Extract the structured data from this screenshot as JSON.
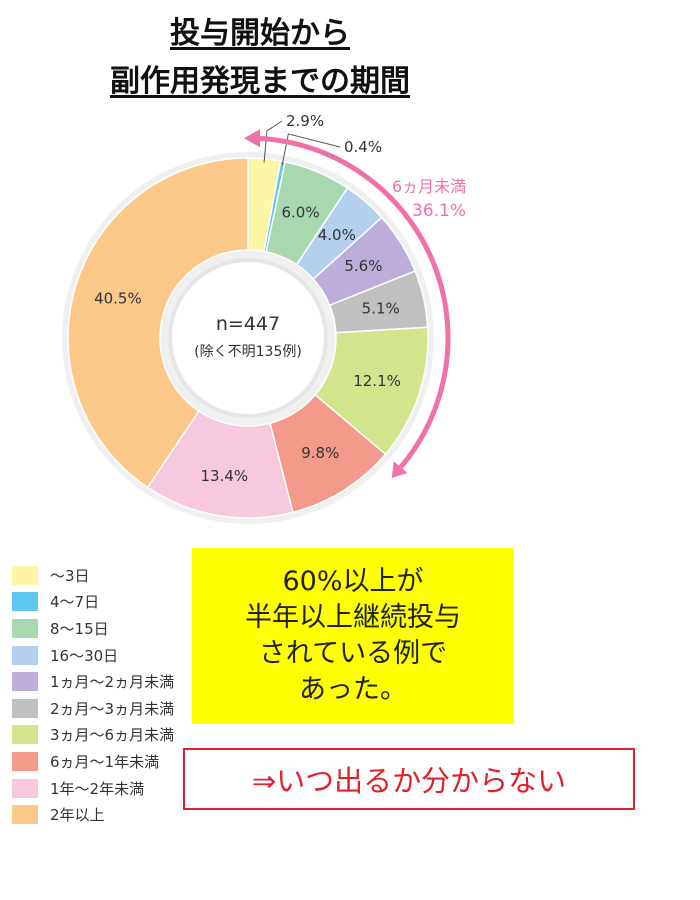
{
  "title_line1": "投与開始から",
  "title_line2": "副作用発現までの期間",
  "center_label": {
    "n": "n=447",
    "note": "(除く不明135例)"
  },
  "bracket": {
    "label": "6ヵ月未満",
    "value": "36.1%",
    "color": "#f070a8"
  },
  "chart_data": {
    "type": "pie",
    "donut": true,
    "slices": [
      {
        "label": "〜3日",
        "value": 2.9,
        "display": "2.9%",
        "color": "#fdf5a8"
      },
      {
        "label": "4〜7日",
        "value": 0.4,
        "display": "0.4%",
        "color": "#5fc8ee"
      },
      {
        "label": "8〜15日",
        "value": 6.0,
        "display": "6.0%",
        "color": "#a8d8b0"
      },
      {
        "label": "16〜30日",
        "value": 4.0,
        "display": "4.0%",
        "color": "#b4d0ee"
      },
      {
        "label": "1ヵ月〜2ヵ月未満",
        "value": 5.6,
        "display": "5.6%",
        "color": "#bcaed8"
      },
      {
        "label": "2ヵ月〜3ヵ月未満",
        "value": 5.1,
        "display": "5.1%",
        "color": "#c0c0c0"
      },
      {
        "label": "3ヵ月〜6ヵ月未満",
        "value": 12.1,
        "display": "12.1%",
        "color": "#d2e48c"
      },
      {
        "label": "6ヵ月〜1年未満",
        "value": 9.8,
        "display": "9.8%",
        "color": "#f49a8a"
      },
      {
        "label": "1年〜2年未満",
        "value": 13.4,
        "display": "13.4%",
        "color": "#f8c8de"
      },
      {
        "label": "2年以上",
        "value": 40.5,
        "display": "40.5%",
        "color": "#fcc88a"
      }
    ]
  },
  "callout": {
    "text": "60%以上が\n半年以上継続投与\nされている例で\nあった。",
    "bg": "#ffff00"
  },
  "conclusion": {
    "text": "⇒いつ出るか分からない",
    "color": "#e0202a"
  }
}
